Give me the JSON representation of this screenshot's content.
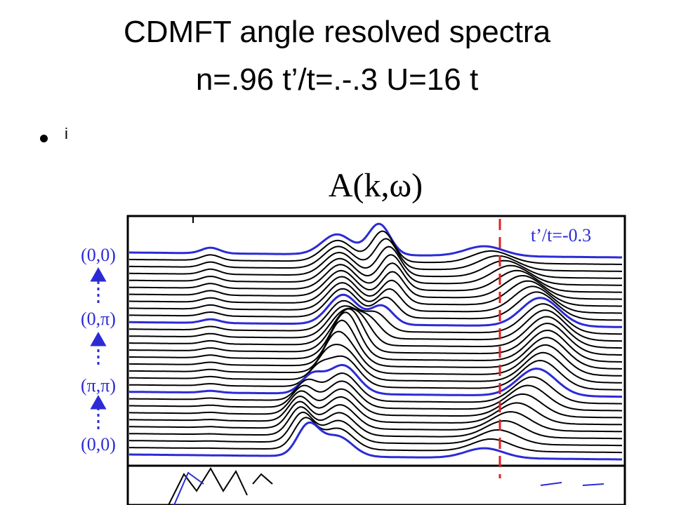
{
  "slide": {
    "title_line1": "CDMFT angle resolved spectra",
    "title_line2": "n=.96 t’/t=.-.3 U=16 t",
    "bullet_text": "i"
  },
  "figure": {
    "panel_title": "A(k,ω)",
    "inset_label": "t’/t=-0.3",
    "k_labels": [
      "(0,0)",
      "(0,π)",
      "(π,π)",
      "(0,0)"
    ],
    "colors": {
      "highlight_curve": "#2b2bd6",
      "regular_curve": "#000000",
      "fermi_line": "#e02020",
      "arrow": "#2b2bd6"
    }
  }
}
